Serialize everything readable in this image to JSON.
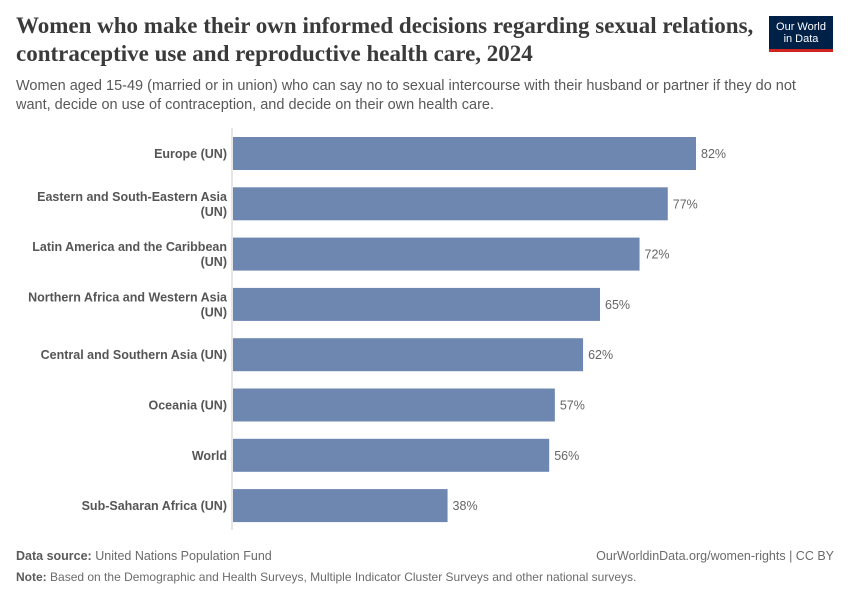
{
  "title": "Women who make their own informed decisions regarding sexual relations, contraceptive use and reproductive health care, 2024",
  "subtitle": "Women aged 15-49 (married or in union) who can say no to sexual intercourse with their husband or partner if they do not want, decide on use of contraception, and decide on their own health care.",
  "logo": {
    "line1": "Our World",
    "line2": "in Data",
    "background": "#002147",
    "accent": "#ce261e"
  },
  "footer": {
    "source_label": "Data source:",
    "source_text": "United Nations Population Fund",
    "url_text": "OurWorldinData.org/women-rights | CC BY",
    "note_label": "Note:",
    "note_text": "Based on the Demographic and Health Surveys, Multiple Indicator Cluster Surveys and other national surveys."
  },
  "chart_data": {
    "type": "bar",
    "orientation": "horizontal",
    "categories": [
      [
        "Europe (UN)"
      ],
      [
        "Eastern and South-Eastern Asia",
        "(UN)"
      ],
      [
        "Latin America and the Caribbean",
        "(UN)"
      ],
      [
        "Northern Africa and Western Asia",
        "(UN)"
      ],
      [
        "Central and Southern Asia (UN)"
      ],
      [
        "Oceania (UN)"
      ],
      [
        "World"
      ],
      [
        "Sub-Saharan Africa (UN)"
      ]
    ],
    "values": [
      82,
      77,
      72,
      65,
      62,
      57,
      56,
      38
    ],
    "value_suffix": "%",
    "xlim": [
      0,
      82
    ],
    "bar_color": "#6d87b0",
    "grid": false
  }
}
